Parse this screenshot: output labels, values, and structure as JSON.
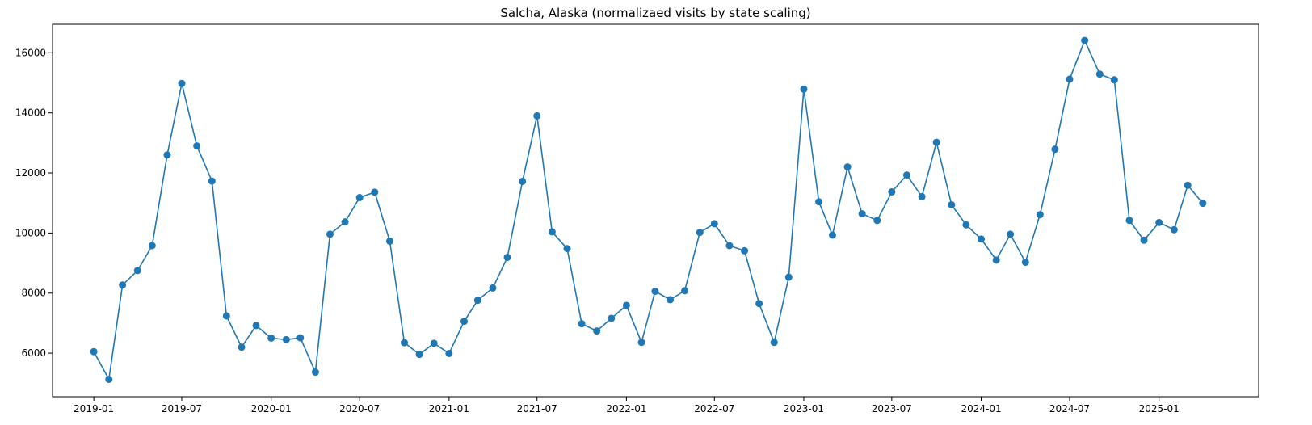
{
  "chart_data": {
    "type": "line",
    "title": "Salcha, Alaska (normalizaed visits by state scaling)",
    "xlabel": "",
    "ylabel": "",
    "color": "#1f77b4",
    "marker": "circle",
    "grid": false,
    "legend": "none",
    "xlim": [
      "2018-10-08",
      "2025-07-25"
    ],
    "ylim": [
      4550,
      16950
    ],
    "x_ticks": [
      "2019-01",
      "2019-07",
      "2020-01",
      "2020-07",
      "2021-01",
      "2021-07",
      "2022-01",
      "2022-07",
      "2023-01",
      "2023-07",
      "2024-01",
      "2024-07",
      "2025-01"
    ],
    "y_ticks": [
      6000,
      8000,
      10000,
      12000,
      14000,
      16000
    ],
    "series": [
      {
        "x": [
          "2019-01",
          "2019-02",
          "2019-03",
          "2019-04",
          "2019-05",
          "2019-06",
          "2019-07",
          "2019-08",
          "2019-09",
          "2019-10",
          "2019-11",
          "2019-12",
          "2020-01",
          "2020-02",
          "2020-03",
          "2020-04",
          "2020-05",
          "2020-06",
          "2020-07",
          "2020-08",
          "2020-09",
          "2020-10",
          "2020-11",
          "2020-12",
          "2021-01",
          "2021-02",
          "2021-03",
          "2021-04",
          "2021-05",
          "2021-06",
          "2021-07",
          "2021-08",
          "2021-09",
          "2021-10",
          "2021-11",
          "2021-12",
          "2022-01",
          "2022-02",
          "2022-03",
          "2022-04",
          "2022-05",
          "2022-06",
          "2022-07",
          "2022-08",
          "2022-09",
          "2022-10",
          "2022-11",
          "2022-12",
          "2023-01",
          "2023-02",
          "2023-03",
          "2023-04",
          "2023-05",
          "2023-06",
          "2023-07",
          "2023-08",
          "2023-09",
          "2023-10",
          "2023-11",
          "2023-12",
          "2024-01",
          "2024-02",
          "2024-03",
          "2024-04",
          "2024-05",
          "2024-06",
          "2024-07",
          "2024-08",
          "2024-09",
          "2024-10",
          "2024-11",
          "2024-12",
          "2025-01",
          "2025-02",
          "2025-03",
          "2025-04"
        ],
        "values": [
          6050,
          5130,
          8270,
          8750,
          9580,
          12600,
          14980,
          12900,
          11730,
          7240,
          6200,
          6920,
          6500,
          6450,
          6510,
          5370,
          9960,
          10370,
          11180,
          11360,
          9730,
          6350,
          5960,
          6330,
          5990,
          7060,
          7760,
          8170,
          9190,
          11720,
          13900,
          10040,
          9480,
          6980,
          6740,
          7160,
          7590,
          6360,
          8060,
          7780,
          8080,
          10020,
          10310,
          9580,
          9410,
          7650,
          6360,
          8530,
          14790,
          11040,
          9930,
          12200,
          10640,
          10420,
          11370,
          11930,
          11210,
          13020,
          10940,
          10270,
          9800,
          9100,
          9960,
          9030,
          10610,
          12790,
          15120,
          16410,
          15290,
          15100,
          10420,
          9760,
          10350,
          10110,
          11590,
          10990
        ]
      }
    ]
  }
}
